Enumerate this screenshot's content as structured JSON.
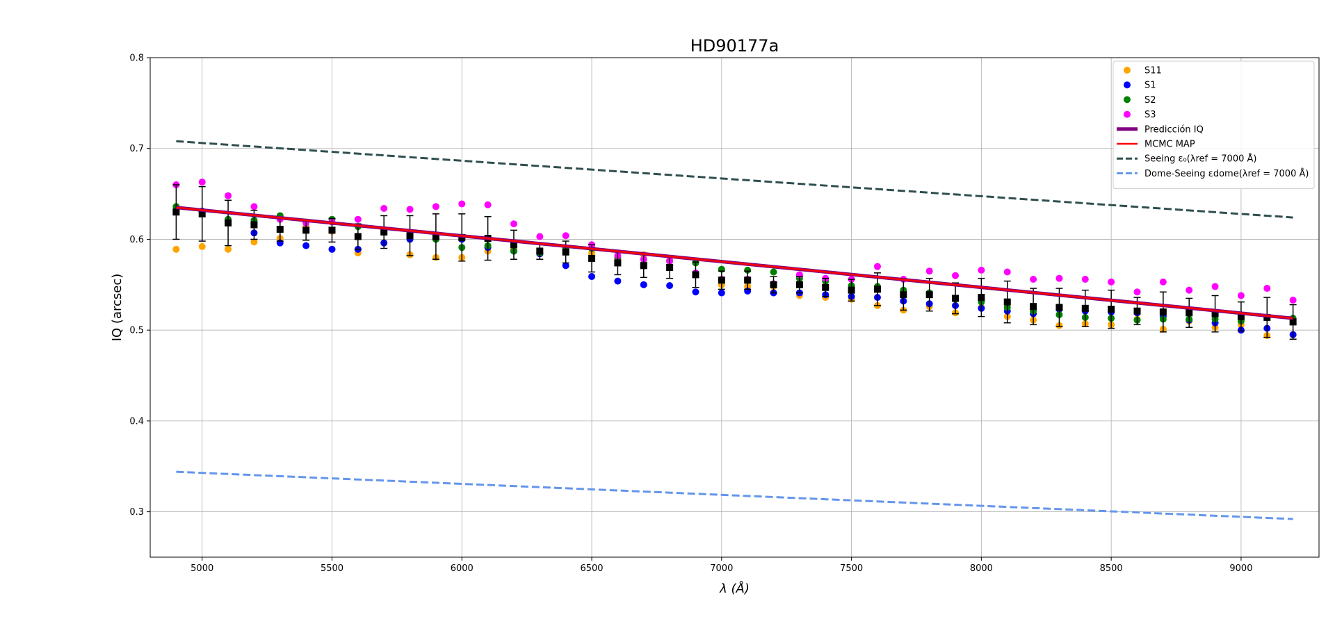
{
  "chart_data": {
    "type": "scatter",
    "title": "HD90177a",
    "xlabel": "λ (Å)",
    "ylabel": "IQ (arcsec)",
    "xlim": [
      4800,
      9300
    ],
    "ylim": [
      0.25,
      0.8
    ],
    "x_ticks": [
      5000,
      5500,
      6000,
      6500,
      7000,
      7500,
      8000,
      8500,
      9000
    ],
    "y_ticks": [
      0.3,
      0.4,
      0.5,
      0.6,
      0.7,
      0.8
    ],
    "grid": true,
    "legend_position": "top-right",
    "x": [
      4900,
      5000,
      5100,
      5200,
      5300,
      5400,
      5500,
      5600,
      5700,
      5800,
      5900,
      6000,
      6100,
      6200,
      6300,
      6400,
      6500,
      6600,
      6700,
      6800,
      6900,
      7000,
      7100,
      7200,
      7300,
      7400,
      7500,
      7600,
      7700,
      7800,
      7900,
      8000,
      8100,
      8200,
      8300,
      8400,
      8500,
      8600,
      8700,
      8800,
      8900,
      9000,
      9100,
      9200
    ],
    "series": [
      {
        "name": "S11",
        "kind": "points",
        "color": "#ffa500",
        "y": [
          0.589,
          0.592,
          0.589,
          0.597,
          0.601,
          0.614,
          0.609,
          0.585,
          0.596,
          0.583,
          0.58,
          0.58,
          0.587,
          0.59,
          0.584,
          0.587,
          0.585,
          0.578,
          0.583,
          0.577,
          0.562,
          0.55,
          0.548,
          0.548,
          0.538,
          0.536,
          0.534,
          0.527,
          0.522,
          0.526,
          0.519,
          0.525,
          0.515,
          0.511,
          0.505,
          0.507,
          0.506,
          0.512,
          0.501,
          0.51,
          0.503,
          0.506,
          0.494,
          0.495
        ]
      },
      {
        "name": "S1",
        "kind": "points",
        "color": "#0000ff",
        "y": [
          0.632,
          0.631,
          0.62,
          0.607,
          0.596,
          0.593,
          0.589,
          0.589,
          0.596,
          0.6,
          0.601,
          0.6,
          0.591,
          0.587,
          0.584,
          0.571,
          0.559,
          0.554,
          0.55,
          0.549,
          0.542,
          0.541,
          0.543,
          0.541,
          0.541,
          0.539,
          0.537,
          0.536,
          0.532,
          0.529,
          0.527,
          0.524,
          0.521,
          0.518,
          0.523,
          0.521,
          0.52,
          0.519,
          0.515,
          0.511,
          0.508,
          0.5,
          0.502,
          0.495
        ]
      },
      {
        "name": "S2",
        "kind": "points",
        "color": "#008000",
        "y": [
          0.636,
          0.63,
          0.622,
          0.621,
          0.626,
          0.619,
          0.622,
          0.614,
          0.608,
          0.604,
          0.6,
          0.591,
          0.593,
          0.587,
          0.585,
          0.59,
          0.59,
          0.58,
          0.573,
          0.576,
          0.574,
          0.567,
          0.566,
          0.564,
          0.557,
          0.554,
          0.549,
          0.548,
          0.544,
          0.541,
          0.534,
          0.531,
          0.525,
          0.521,
          0.517,
          0.514,
          0.513,
          0.511,
          0.512,
          0.512,
          0.512,
          0.51,
          0.514,
          0.513
        ]
      },
      {
        "name": "S3",
        "kind": "points",
        "color": "#ff00ff",
        "y": [
          0.66,
          0.663,
          0.648,
          0.636,
          0.622,
          0.618,
          0.619,
          0.622,
          0.634,
          0.633,
          0.636,
          0.639,
          0.638,
          0.617,
          0.603,
          0.604,
          0.594,
          0.582,
          0.578,
          0.576,
          0.563,
          0.556,
          0.556,
          0.551,
          0.561,
          0.557,
          0.556,
          0.57,
          0.556,
          0.565,
          0.56,
          0.566,
          0.564,
          0.556,
          0.557,
          0.556,
          0.553,
          0.542,
          0.553,
          0.544,
          0.548,
          0.538,
          0.546,
          0.533
        ]
      },
      {
        "name": "",
        "kind": "errorbar",
        "color": "#000000",
        "y": [
          0.63,
          0.628,
          0.618,
          0.616,
          0.611,
          0.61,
          0.61,
          0.603,
          0.608,
          0.604,
          0.603,
          0.602,
          0.601,
          0.594,
          0.587,
          0.586,
          0.579,
          0.574,
          0.571,
          0.569,
          0.561,
          0.555,
          0.555,
          0.55,
          0.55,
          0.547,
          0.544,
          0.545,
          0.539,
          0.539,
          0.535,
          0.536,
          0.531,
          0.526,
          0.525,
          0.524,
          0.523,
          0.521,
          0.52,
          0.519,
          0.518,
          0.515,
          0.514,
          0.509
        ],
        "err": [
          0.03,
          0.03,
          0.025,
          0.016,
          0.013,
          0.011,
          0.013,
          0.014,
          0.018,
          0.022,
          0.025,
          0.026,
          0.024,
          0.016,
          0.009,
          0.012,
          0.015,
          0.013,
          0.013,
          0.012,
          0.014,
          0.01,
          0.01,
          0.009,
          0.009,
          0.01,
          0.012,
          0.018,
          0.017,
          0.018,
          0.017,
          0.021,
          0.023,
          0.02,
          0.021,
          0.02,
          0.021,
          0.015,
          0.022,
          0.016,
          0.02,
          0.016,
          0.022,
          0.019
        ]
      },
      {
        "name": "Predicción IQ",
        "kind": "line",
        "color": "#800080",
        "x": [
          4900,
          9200
        ],
        "y": [
          0.635,
          0.513
        ]
      },
      {
        "name": "MCMC MAP",
        "kind": "line",
        "color": "#ff0000",
        "x": [
          4900,
          9200
        ],
        "y": [
          0.635,
          0.513
        ]
      },
      {
        "name": "Seeing ε₀(λref = 7000 Å)",
        "kind": "dashed",
        "color": "#2f4f4f",
        "x": [
          4900,
          9200
        ],
        "y": [
          0.708,
          0.624
        ]
      },
      {
        "name": "Dome-Seeing εdome(λref = 7000 Å)",
        "kind": "dashed",
        "color": "#6495ed",
        "x": [
          4900,
          9200
        ],
        "y": [
          0.344,
          0.292
        ]
      }
    ]
  }
}
